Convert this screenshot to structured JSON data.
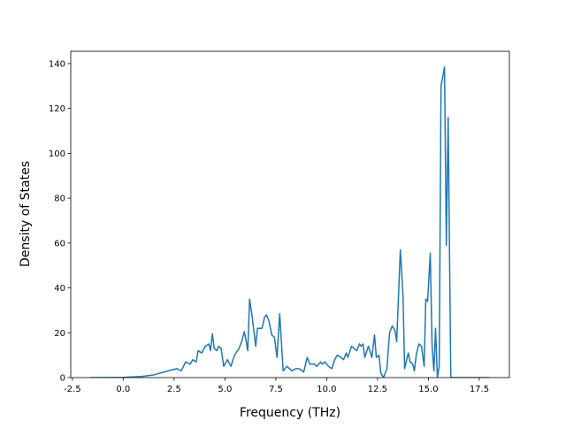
{
  "chart_data": {
    "type": "line",
    "xlabel": "Frequency (THz)",
    "ylabel": "Density of States",
    "x": [
      -1.6,
      0,
      0.89,
      1.5,
      2.2,
      2.64,
      2.85,
      3.07,
      3.29,
      3.42,
      3.59,
      3.68,
      3.86,
      4.03,
      4.21,
      4.29,
      4.38,
      4.47,
      4.6,
      4.68,
      4.81,
      4.94,
      5.12,
      5.29,
      5.47,
      5.69,
      5.82,
      5.95,
      6.03,
      6.12,
      6.21,
      6.34,
      6.51,
      6.6,
      6.82,
      6.95,
      7.04,
      7.17,
      7.3,
      7.43,
      7.56,
      7.69,
      7.86,
      8.04,
      8.3,
      8.47,
      8.65,
      8.87,
      9.04,
      9.17,
      9.39,
      9.52,
      9.7,
      9.78,
      9.91,
      10.09,
      10.26,
      10.39,
      10.52,
      10.7,
      10.83,
      10.96,
      11.04,
      11.22,
      11.35,
      11.48,
      11.61,
      11.7,
      11.79,
      11.87,
      12.05,
      12.22,
      12.35,
      12.44,
      12.57,
      12.66,
      12.79,
      12.96,
      13.09,
      13.22,
      13.36,
      13.44,
      13.62,
      13.75,
      13.83,
      14.01,
      14.1,
      14.23,
      14.31,
      14.4,
      14.53,
      14.66,
      14.79,
      14.87,
      14.96,
      15.09,
      15.18,
      15.27,
      15.35,
      15.44,
      15.53,
      15.62,
      15.79,
      15.88,
      15.97,
      16.1,
      18.0
    ],
    "series": [
      {
        "color": "#1f77b4",
        "values": [
          0,
          0.1,
          0.5,
          1.2,
          3,
          4,
          3,
          7,
          6,
          8,
          7,
          12,
          11,
          14,
          15,
          12,
          19.5,
          13,
          12,
          14,
          13,
          5,
          8,
          5,
          10,
          13,
          16,
          20.5,
          17,
          12,
          35,
          27,
          14,
          22,
          22,
          27,
          28,
          25,
          19,
          18,
          9,
          28.5,
          3,
          5,
          3,
          4,
          4,
          2.5,
          9,
          6,
          6,
          5,
          7,
          6,
          7,
          5,
          4,
          8,
          10,
          9,
          8,
          11,
          9,
          14,
          13,
          12,
          15,
          14,
          15,
          9,
          14,
          9,
          19,
          9,
          10,
          2,
          0,
          4,
          20,
          23,
          21,
          16,
          57,
          37,
          4,
          11,
          7,
          6,
          3,
          10,
          15,
          14,
          5,
          35,
          34,
          55.5,
          14,
          3,
          22,
          0,
          5,
          130,
          138.5,
          59,
          116,
          0,
          0
        ]
      }
    ],
    "xlim": [
      -2.58,
      18.98
    ],
    "xticks": [
      -2.5,
      {
        "value": 0,
        "label": "0.0"
      },
      2.5,
      {
        "value": 5,
        "label": "5.0"
      },
      7.5,
      {
        "value": 10,
        "label": "10.0"
      },
      12.5,
      {
        "value": 15,
        "label": "15.0"
      },
      17.5
    ],
    "ylim": [
      0,
      145.5
    ],
    "yticks": [
      0,
      20,
      40,
      60,
      80,
      100,
      120,
      140
    ]
  }
}
